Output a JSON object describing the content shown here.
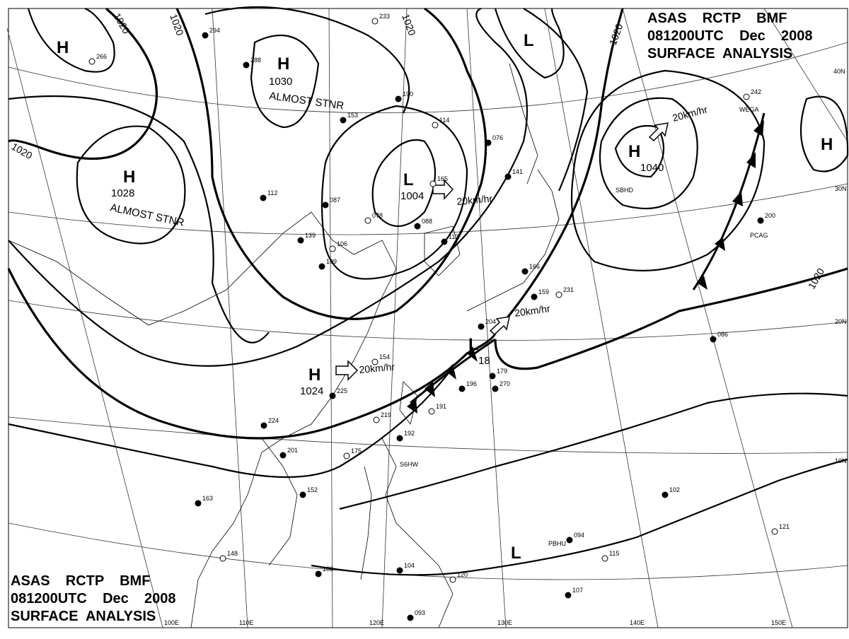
{
  "header": {
    "line1": "ASAS    RCTP    BMF",
    "line2": "081200UTC    Dec    2008",
    "line3": "SURFACE  ANALYSIS"
  },
  "latitude_labels": [
    "40N",
    "30N",
    "20N",
    "10N"
  ],
  "longitude_labels": [
    "100E",
    "110E",
    "120E",
    "130E",
    "140E",
    "150E"
  ],
  "isobar_labels": [
    "1020",
    "1020",
    "1020",
    "1020",
    "1020",
    "1020"
  ],
  "pressure_centers": [
    {
      "type": "H",
      "value": "",
      "note": ""
    },
    {
      "type": "H",
      "value": "1030",
      "note": "ALMOST STNR"
    },
    {
      "type": "H",
      "value": "1028",
      "note": "ALMOST STNR"
    },
    {
      "type": "L",
      "value": "1004",
      "note": ""
    },
    {
      "type": "L",
      "value": "",
      "note": ""
    },
    {
      "type": "H",
      "value": "1040",
      "note": ""
    },
    {
      "type": "H",
      "value": "",
      "note": ""
    },
    {
      "type": "H",
      "value": "1024",
      "note": ""
    },
    {
      "type": "L",
      "value": "18",
      "note": ""
    },
    {
      "type": "L",
      "value": "",
      "note": ""
    }
  ],
  "movement_labels": [
    "20km/hr",
    "20km/hr",
    "20km/hr",
    "20km/hr"
  ],
  "station_ids": [
    "WEGA",
    "PCAG",
    "S6HW",
    "PBHU",
    "SBHD"
  ],
  "station_values": [
    "266",
    "294",
    "288",
    "233",
    "190",
    "153",
    "114",
    "076",
    "141",
    "165",
    "087",
    "112",
    "078",
    "088",
    "113",
    "106",
    "109",
    "139",
    "154",
    "225",
    "224",
    "219",
    "201",
    "192",
    "175",
    "152",
    "163",
    "148",
    "108",
    "104",
    "120",
    "093",
    "094",
    "115",
    "107",
    "102",
    "121",
    "086",
    "200",
    "242",
    "270",
    "196",
    "191",
    "179",
    "204",
    "231",
    "159",
    "166"
  ]
}
